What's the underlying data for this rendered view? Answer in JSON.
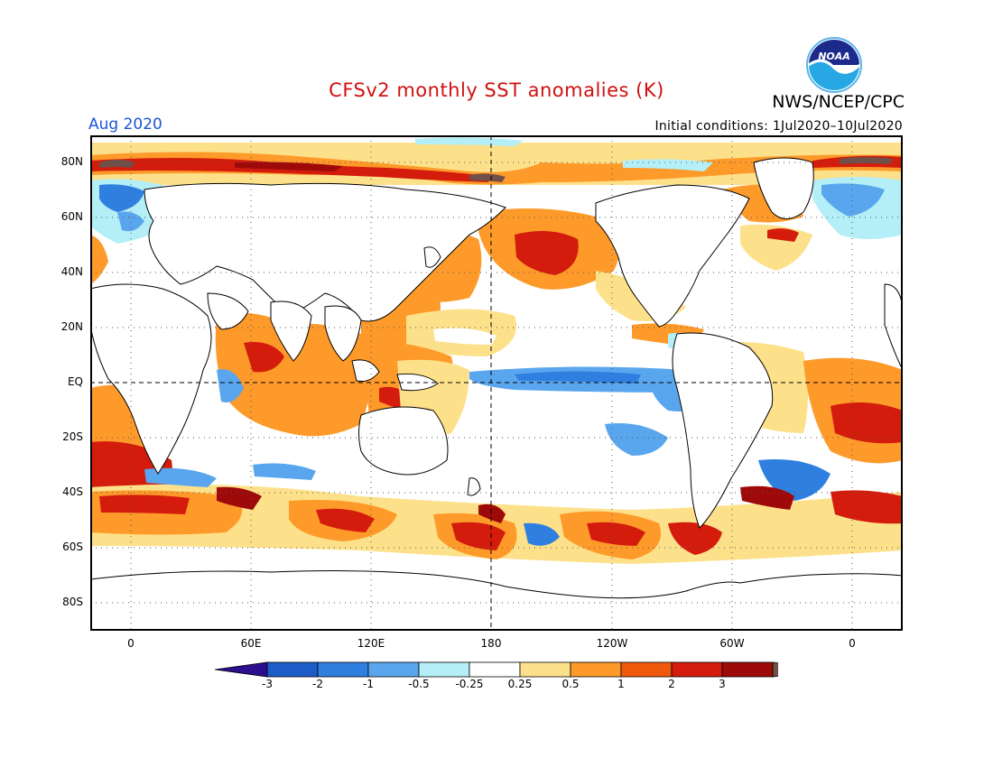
{
  "header": {
    "title": "CFSv2 monthly SST anomalies (K)",
    "agency": "NWS/NCEP/CPC",
    "valid_month": "Aug 2020",
    "initial_conditions": "Initial conditions: 1Jul2020–10Jul2020",
    "logo_text": "NOAA"
  },
  "map": {
    "lat_labels": [
      "80N",
      "60N",
      "40N",
      "20N",
      "EQ",
      "20S",
      "40S",
      "60S",
      "80S"
    ],
    "lon_labels": [
      "0",
      "60E",
      "120E",
      "180",
      "120W",
      "60W",
      "0"
    ]
  },
  "colorbar": {
    "labels": [
      "-3",
      "-2",
      "-1",
      "-0.5",
      "-0.25",
      "0.25",
      "0.5",
      "1",
      "2",
      "3"
    ],
    "colors": [
      "#2b0f8f",
      "#1c5cc7",
      "#2f7fe0",
      "#5aa6ee",
      "#b4eef7",
      "#ffffff",
      "#fde18a",
      "#fd9a2a",
      "#f0590c",
      "#d41c0c",
      "#9e0a0a",
      "#705048"
    ]
  }
}
